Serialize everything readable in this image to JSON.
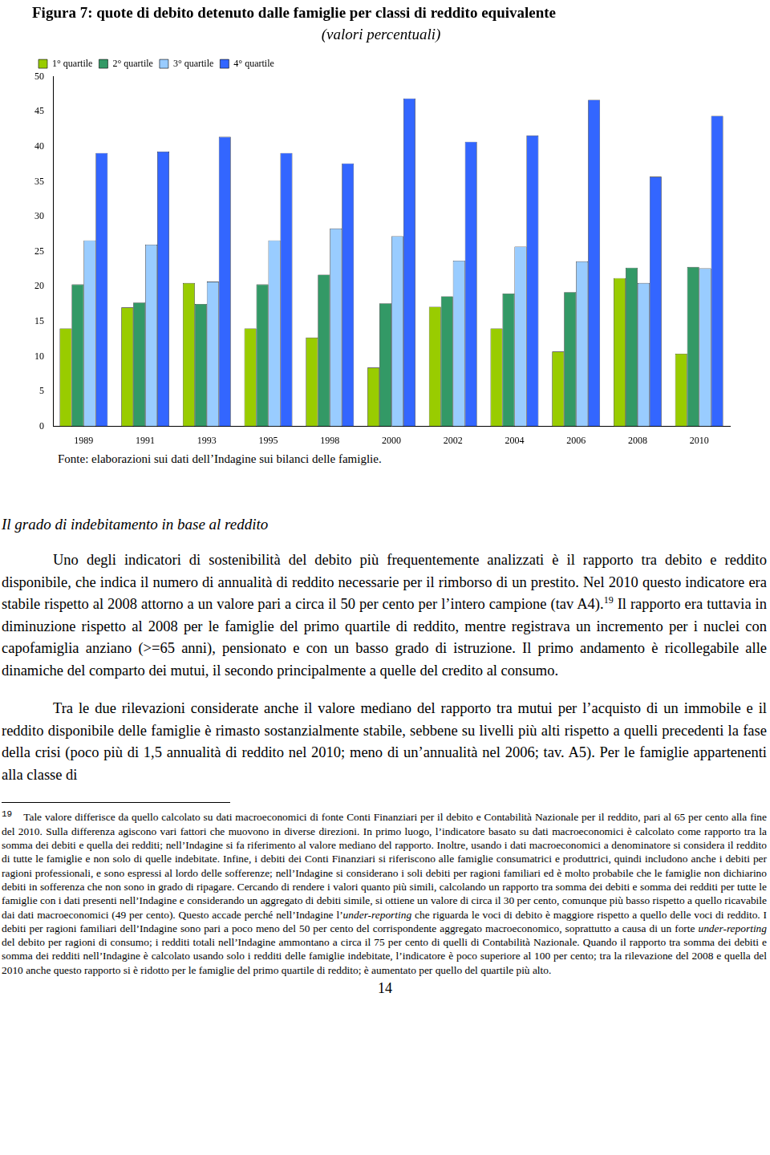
{
  "chart_data": {
    "type": "bar",
    "title": "Figura 7: quote di debito detenuto dalle famiglie per classi di reddito equivalente",
    "subtitle": "(valori percentuali)",
    "categories": [
      "1989",
      "1991",
      "1993",
      "1995",
      "1998",
      "2000",
      "2002",
      "2004",
      "2006",
      "2008",
      "2010"
    ],
    "series": [
      {
        "name": "1° quartile",
        "color": "#99cc00",
        "values": [
          14.0,
          17.0,
          20.5,
          14.0,
          12.7,
          8.4,
          17.1,
          14.0,
          10.7,
          21.2,
          10.4
        ]
      },
      {
        "name": "2° quartile",
        "color": "#339966",
        "values": [
          20.3,
          17.7,
          17.5,
          20.3,
          21.7,
          17.6,
          18.6,
          19.0,
          19.2,
          22.7,
          22.8
        ]
      },
      {
        "name": "3° quartile",
        "color": "#99ccff",
        "values": [
          26.6,
          26.0,
          20.7,
          26.6,
          28.3,
          27.2,
          23.7,
          25.7,
          23.6,
          20.5,
          22.6
        ]
      },
      {
        "name": "4° quartile",
        "color": "#3366ff",
        "values": [
          39.1,
          39.3,
          41.4,
          39.1,
          37.6,
          46.9,
          40.7,
          41.6,
          46.7,
          35.7,
          44.4
        ]
      }
    ],
    "ylim": [
      0,
      50
    ],
    "yticks": [
      0,
      5,
      10,
      15,
      20,
      25,
      30,
      35,
      40,
      45,
      50
    ],
    "grid": false,
    "legend": "top-left"
  },
  "document": {
    "source": "Fonte: elaborazioni sui dati dell’Indagine sui bilanci delle famiglie.",
    "heading": "Il grado di indebitamento in base al reddito",
    "paragraphs": [
      [
        {
          "text": "Uno degli indicatori di sostenibilità del debito più frequentemente analizzati è il rapporto tra debito e reddito disponibile, che indica il numero di annualità di reddito necessarie per il rimborso di un prestito. Nel 2010 questo indicatore era stabile rispetto al 2008 attorno a un valore pari a circa il 50 per cento per l’intero campione (tav A4)."
        },
        {
          "text": "19",
          "sup": true
        },
        {
          "text": " Il rapporto era tuttavia in diminuzione rispetto al 2008 per le famiglie del primo quartile di reddito, mentre registrava un incremento per i nuclei con capofamiglia anziano (>=65 anni), pensionato e con un basso grado di istruzione. Il primo andamento è ricollegabile alle dinamiche del comparto dei mutui, il secondo principalmente a quelle del credito al consumo."
        }
      ],
      [
        {
          "text": "Tra le due rilevazioni considerate anche il valore mediano del rapporto tra mutui per l’acquisto di un immobile e il reddito disponibile delle famiglie è rimasto sostanzialmente stabile, sebbene su livelli più alti rispetto a quelli precedenti la fase della crisi (poco più di 1,5 annualità di reddito nel 2010; meno di un’annualità nel 2006; tav. A5). Per le famiglie appartenenti alla classe di"
        }
      ]
    ],
    "footnote": {
      "number": "19",
      "segments": [
        {
          "text": "Tale valore differisce da quello calcolato su dati macroeconomici di fonte Conti Finanziari per il debito e Contabilità Nazionale per il reddito, pari al 65 per cento alla fine del 2010. Sulla differenza agiscono vari fattori che muovono in diverse direzioni. In primo luogo, l’indicatore basato su dati macroeconomici è calcolato come rapporto tra la somma dei debiti e quella dei redditi; nell’Indagine si fa riferimento al valore mediano del rapporto. Inoltre, usando i dati macroeconomici a denominatore si considera il reddito di tutte le famiglie e non solo di quelle indebitate. Infine, i debiti dei Conti Finanziari si riferiscono alle famiglie consumatrici e produttrici, quindi includono anche i debiti per ragioni professionali, e sono espressi al lordo delle sofferenze; nell’Indagine si considerano i soli debiti per ragioni familiari ed è molto probabile che le famiglie non dichiarino debiti in sofferenza che non sono in grado di ripagare. Cercando di rendere i valori quanto più simili, calcolando un rapporto tra somma dei debiti e somma dei redditi per tutte le famiglie con i dati presenti nell’Indagine e considerando un aggregato di debiti simile, si ottiene un valore di circa il 30 per cento, comunque più basso rispetto a quello ricavabile dai dati macroeconomici (49 per cento). Questo accade perché nell’Indagine l’"
        },
        {
          "text": "under-reporting",
          "italic": true
        },
        {
          "text": " che riguarda le voci di debito è maggiore rispetto a quello delle voci di reddito. I debiti per ragioni familiari dell’Indagine sono pari a poco meno del 50 per cento del corrispondente aggregato macroeconomico, soprattutto a causa di un forte "
        },
        {
          "text": "under-reporting",
          "italic": true
        },
        {
          "text": " del debito per ragioni di consumo; i redditi totali nell’Indagine ammontano a circa il 75 per cento di quelli di Contabilità Nazionale. Quando il rapporto tra somma dei debiti e somma dei redditi nell’Indagine è calcolato usando solo i redditi delle famiglie indebitate, l’indicatore è poco superiore al 100 per cento; tra la rilevazione del 2008 e quella del 2010 anche questo rapporto si è ridotto per le famiglie del primo quartile di reddito; è aumentato per quello del quartile più alto."
        }
      ]
    },
    "page_number": "14"
  }
}
